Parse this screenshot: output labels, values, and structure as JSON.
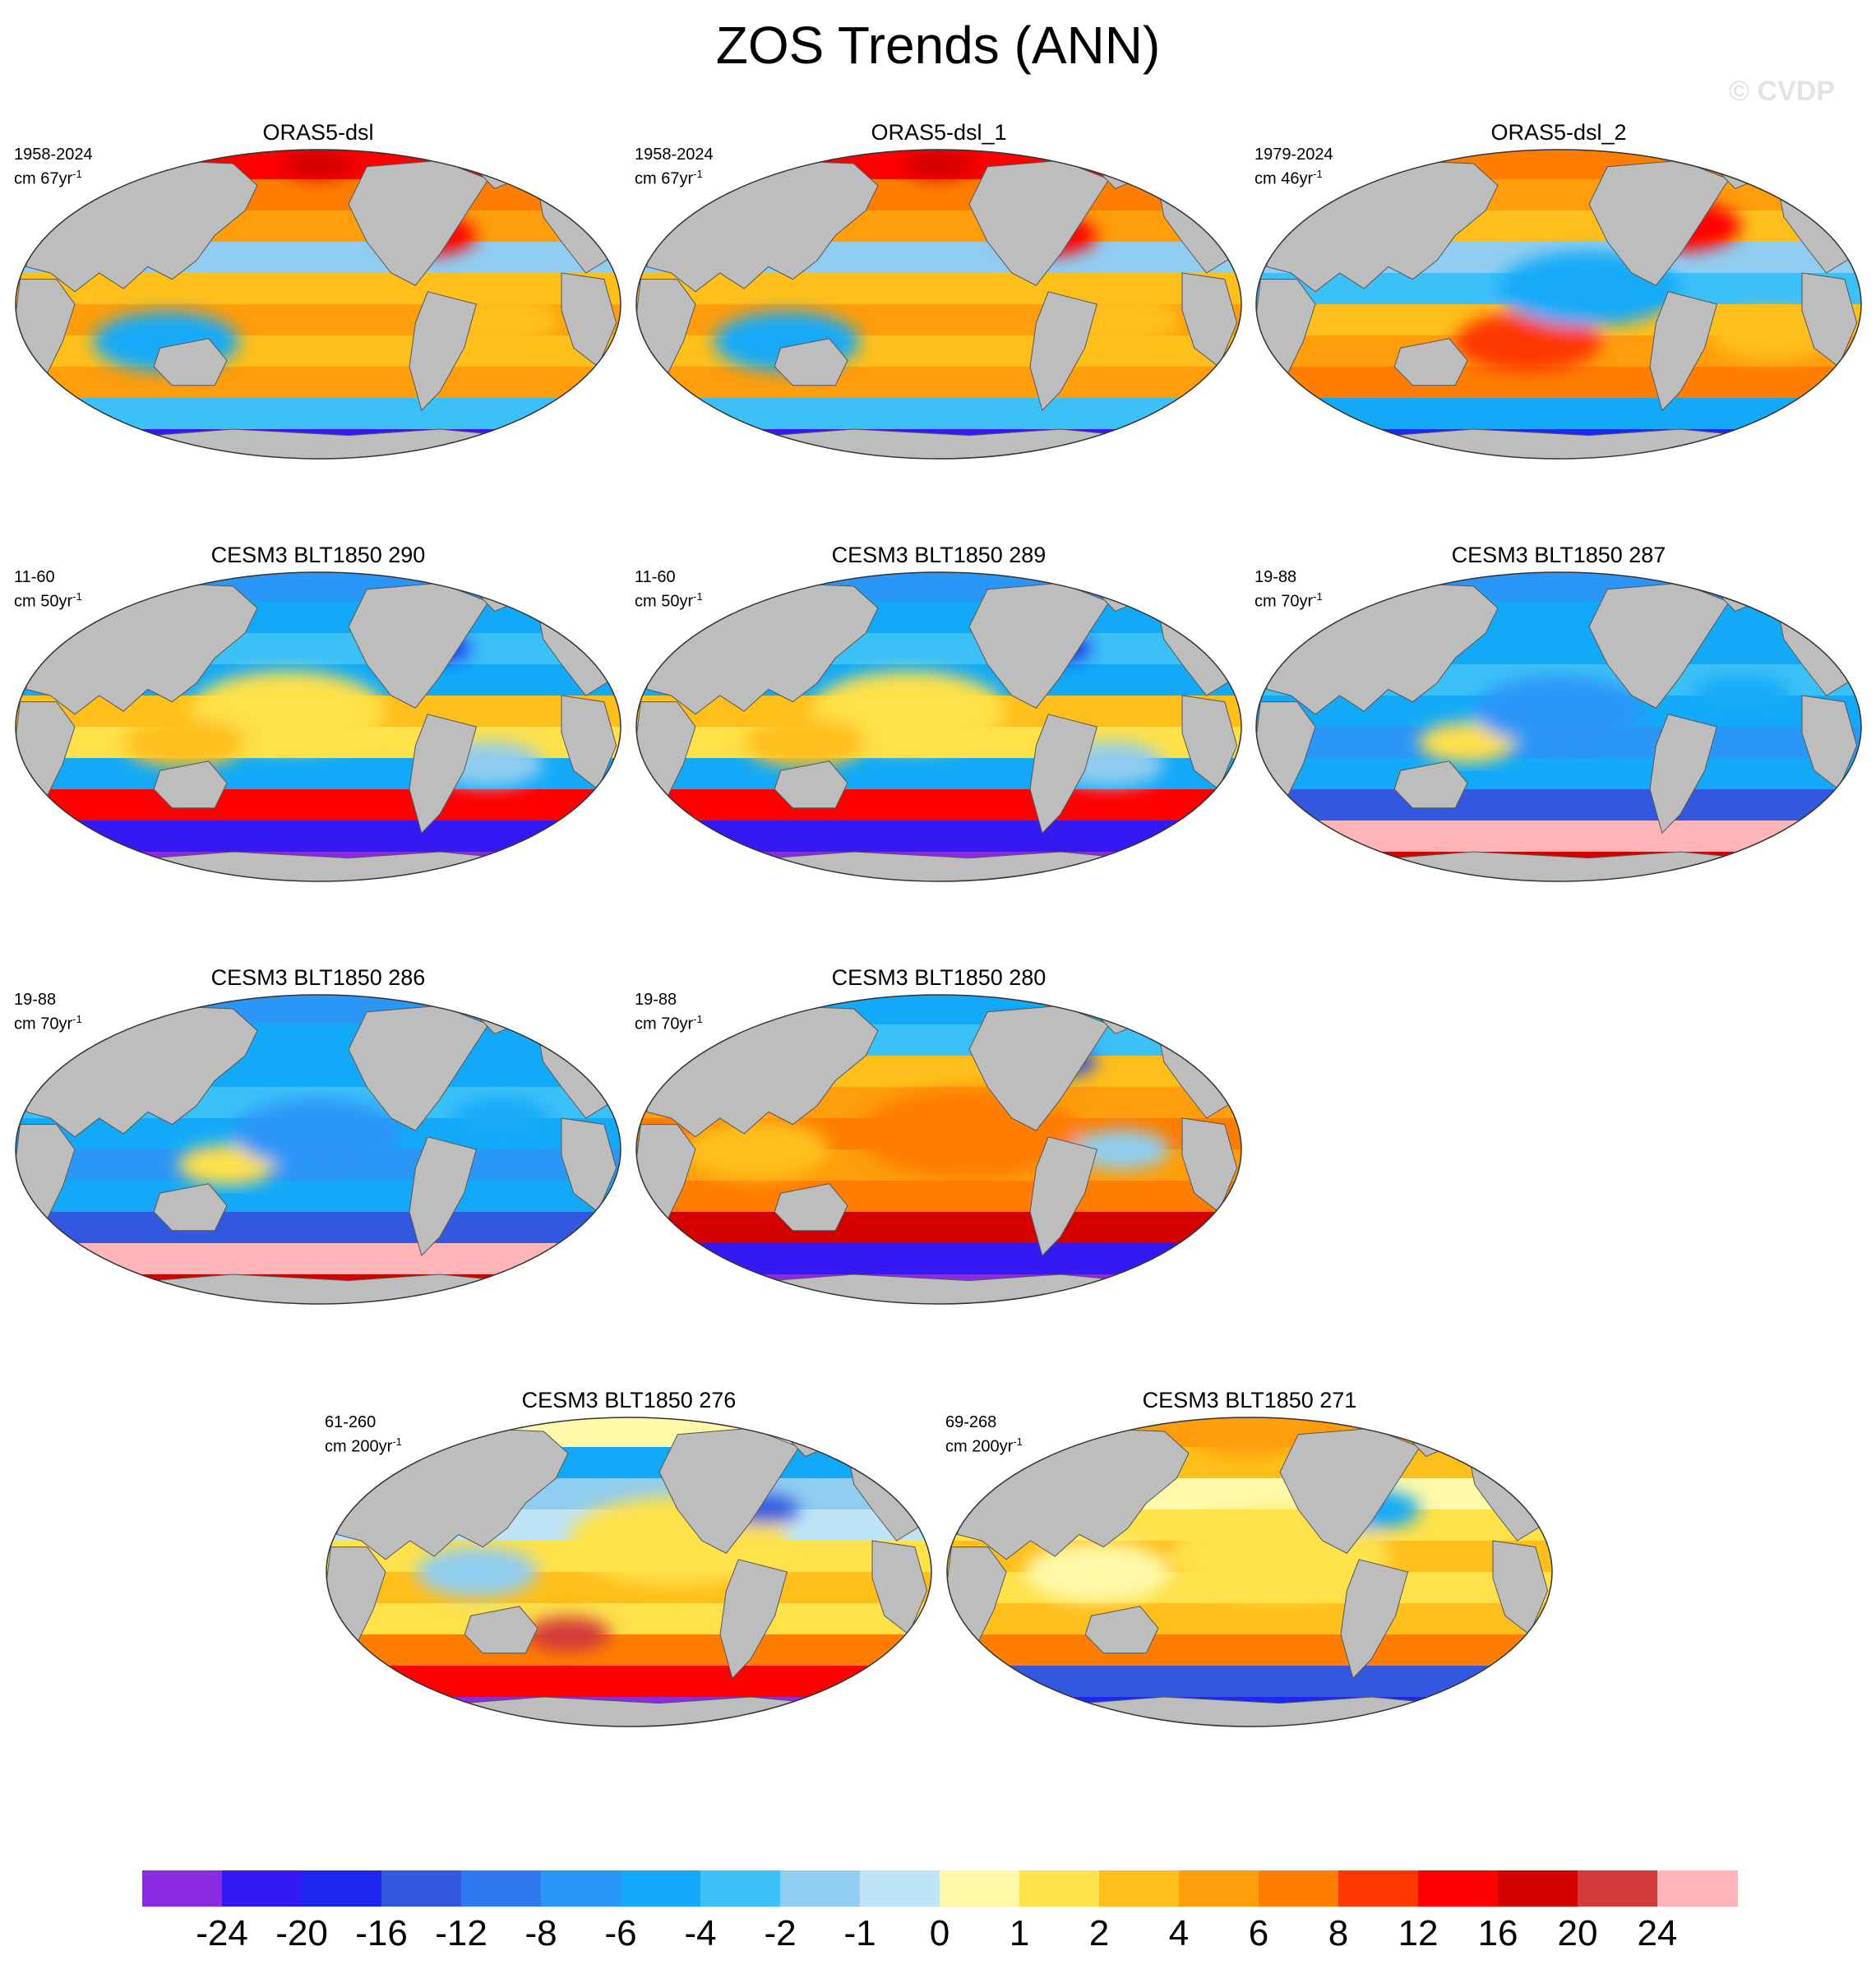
{
  "title": "ZOS Trends (ANN)",
  "watermark": "© CVDP",
  "panels": [
    {
      "title": "ORAS5-dsl",
      "period": "1958-2024",
      "units": "cm 67yr",
      "pattern": "obs"
    },
    {
      "title": "ORAS5-dsl_1",
      "period": "1958-2024",
      "units": "cm 67yr",
      "pattern": "obs"
    },
    {
      "title": "ORAS5-dsl_2",
      "period": "1979-2024",
      "units": "cm 46yr",
      "pattern": "obs2"
    },
    {
      "title": "CESM3 BLT1850 290",
      "period": "11-60",
      "units": "cm 50yr",
      "pattern": "cool_yellow"
    },
    {
      "title": "CESM3 BLT1850 289",
      "period": "11-60",
      "units": "cm 50yr",
      "pattern": "cool_yellow"
    },
    {
      "title": "CESM3 BLT1850 287",
      "period": "19-88",
      "units": "cm 70yr",
      "pattern": "cool"
    },
    {
      "title": "CESM3 BLT1850 286",
      "period": "19-88",
      "units": "cm 70yr",
      "pattern": "cool"
    },
    {
      "title": "CESM3 BLT1850 280",
      "period": "19-88",
      "units": "cm 70yr",
      "pattern": "warm"
    },
    {
      "title": "CESM3 BLT1850 276",
      "period": "61-260",
      "units": "cm 200yr",
      "pattern": "yellow"
    },
    {
      "title": "CESM3 BLT1850 271",
      "period": "69-268",
      "units": "cm 200yr",
      "pattern": "yellow2"
    }
  ],
  "units_superscript": "-1",
  "colorbar": {
    "colors": [
      "#8a2be2",
      "#3519f5",
      "#1c28f0",
      "#3358e0",
      "#2f78f0",
      "#2a96f8",
      "#12aaf8",
      "#3cc0f8",
      "#90cdf0",
      "#bfe4f6",
      "#fff8a8",
      "#ffe14a",
      "#ffbf1a",
      "#ff9d0a",
      "#ff7d00",
      "#ff3800",
      "#ff0000",
      "#d40000",
      "#d33a3a",
      "#ffb4b8"
    ],
    "labels": [
      "-24",
      "-20",
      "-16",
      "-12",
      "-8",
      "-6",
      "-4",
      "-2",
      "-1",
      "0",
      "1",
      "2",
      "4",
      "6",
      "8",
      "12",
      "16",
      "20",
      "24"
    ]
  },
  "land_color": "#bdbdbd"
}
